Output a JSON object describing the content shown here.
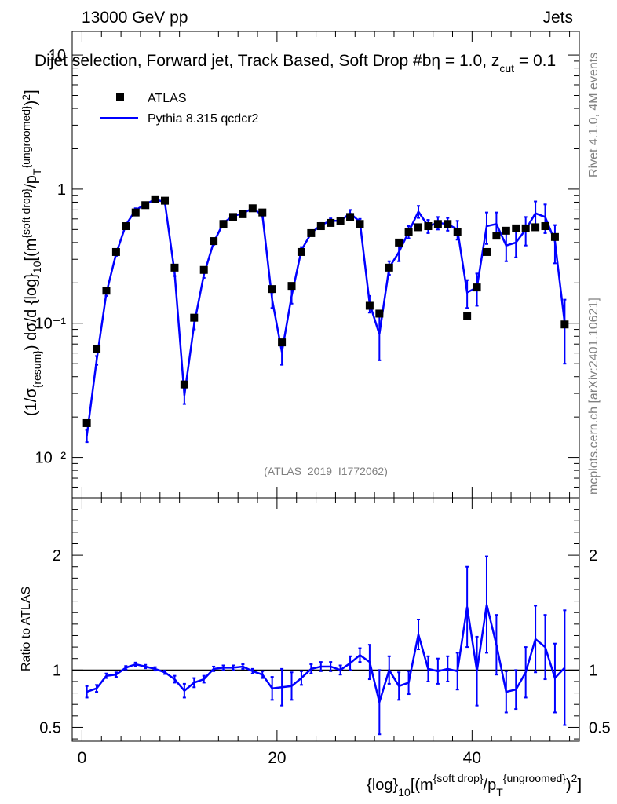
{
  "header": {
    "energy_label": "13000 GeV pp",
    "category_label": "Jets",
    "watermark_id": "(ATLAS_2019_I1772062)",
    "side_rivet": "Rivet 4.1.0,  4M events",
    "side_mcplots": "mcplots.cern.ch [arXiv:2401.10621]"
  },
  "chart_data": [
    {
      "type": "scatter",
      "panel": "main",
      "title": "Dijet selection, Forward jet, Track Based, Soft Drop #bη = 1.0, z",
      "title_sub": "cut",
      "title_tail": " = 0.1",
      "ylabel": "(1/σ{resum}) dσ/d {log}10[(m{soft drop}/pT{ungroomed})2]",
      "yscale": "log",
      "ylim": [
        0.005,
        15
      ],
      "xlim": [
        -1,
        51
      ],
      "y_ticks": [
        "10⁻²",
        "10⁻¹",
        "1",
        "10"
      ],
      "legend": [
        "ATLAS",
        "Pythia 8.315 qcdcr2"
      ],
      "legend_position": "top-left",
      "series": [
        {
          "name": "ATLAS",
          "style": "markers",
          "x": [
            0.5,
            1.5,
            2.5,
            3.5,
            4.5,
            5.5,
            6.5,
            7.5,
            8.5,
            9.5,
            10.5,
            11.5,
            12.5,
            13.5,
            14.5,
            15.5,
            16.5,
            17.5,
            18.5,
            19.5,
            20.5,
            21.5,
            22.5,
            23.5,
            24.5,
            25.5,
            26.5,
            27.5,
            28.5,
            29.5,
            30.5,
            31.5,
            32.5,
            33.5,
            34.5,
            35.5,
            36.5,
            37.5,
            38.5,
            39.5,
            40.5,
            41.5,
            42.5,
            43.5,
            44.5,
            45.5,
            46.5,
            47.5,
            48.5,
            49.5
          ],
          "y": [
            0.018,
            0.064,
            0.175,
            0.34,
            0.53,
            0.67,
            0.76,
            0.84,
            0.82,
            0.26,
            0.035,
            0.11,
            0.25,
            0.41,
            0.55,
            0.62,
            0.65,
            0.72,
            0.67,
            0.18,
            0.072,
            0.19,
            0.34,
            0.47,
            0.53,
            0.56,
            0.58,
            0.62,
            0.55,
            0.135,
            0.118,
            0.26,
            0.4,
            0.48,
            0.52,
            0.53,
            0.55,
            0.55,
            0.48,
            0.113,
            0.185,
            0.34,
            0.45,
            0.49,
            0.51,
            0.51,
            0.52,
            0.53,
            0.44,
            0.098
          ]
        },
        {
          "name": "Pythia 8.315 qcdcr2",
          "style": "line",
          "color": "#0000ff",
          "x": [
            0.5,
            1.5,
            2.5,
            3.5,
            4.5,
            5.5,
            6.5,
            7.5,
            8.5,
            9.5,
            10.5,
            11.5,
            12.5,
            13.5,
            14.5,
            15.5,
            16.5,
            17.5,
            18.5,
            19.5,
            20.5,
            21.5,
            22.5,
            23.5,
            24.5,
            25.5,
            26.5,
            27.5,
            28.5,
            29.5,
            30.5,
            31.5,
            32.5,
            33.5,
            34.5,
            35.5,
            36.5,
            37.5,
            38.5,
            39.5,
            40.5,
            41.5,
            42.5,
            43.5,
            44.5,
            45.5,
            46.5,
            47.5,
            48.5,
            49.5
          ],
          "y": [
            0.0145,
            0.053,
            0.168,
            0.33,
            0.54,
            0.7,
            0.77,
            0.84,
            0.8,
            0.24,
            0.029,
            0.098,
            0.23,
            0.4,
            0.56,
            0.63,
            0.66,
            0.72,
            0.64,
            0.15,
            0.061,
            0.16,
            0.35,
            0.47,
            0.54,
            0.58,
            0.58,
            0.66,
            0.57,
            0.14,
            0.083,
            0.26,
            0.34,
            0.48,
            0.68,
            0.53,
            0.56,
            0.55,
            0.5,
            0.17,
            0.185,
            0.53,
            0.55,
            0.38,
            0.4,
            0.5,
            0.66,
            0.62,
            0.41,
            0.1
          ],
          "err": [
            0.0015,
            0.004,
            0.008,
            0.012,
            0.015,
            0.02,
            0.02,
            0.02,
            0.02,
            0.015,
            0.004,
            0.008,
            0.012,
            0.015,
            0.02,
            0.02,
            0.02,
            0.02,
            0.02,
            0.02,
            0.012,
            0.02,
            0.02,
            0.02,
            0.02,
            0.025,
            0.025,
            0.04,
            0.03,
            0.02,
            0.03,
            0.03,
            0.05,
            0.05,
            0.07,
            0.06,
            0.06,
            0.06,
            0.08,
            0.04,
            0.05,
            0.14,
            0.12,
            0.09,
            0.09,
            0.12,
            0.15,
            0.15,
            0.13,
            0.05
          ]
        }
      ]
    },
    {
      "type": "line",
      "panel": "ratio",
      "xlabel": "{log}10[(m{soft drop}/pT{ungroomed})2]",
      "ylabel": "Ratio to ATLAS",
      "ylim": [
        0.38,
        2.5
      ],
      "xlim": [
        -1,
        51
      ],
      "x_ticks": [
        0,
        20,
        40
      ],
      "y_ticks": [
        0.5,
        1,
        2
      ],
      "reference_line": 1,
      "series": [
        {
          "name": "Pythia 8.315 qcdcr2",
          "color": "#0000ff",
          "x": [
            0.5,
            1.5,
            2.5,
            3.5,
            4.5,
            5.5,
            6.5,
            7.5,
            8.5,
            9.5,
            10.5,
            11.5,
            12.5,
            13.5,
            14.5,
            15.5,
            16.5,
            17.5,
            18.5,
            19.5,
            20.5,
            21.5,
            22.5,
            23.5,
            24.5,
            25.5,
            26.5,
            27.5,
            28.5,
            29.5,
            30.5,
            31.5,
            32.5,
            33.5,
            34.5,
            35.5,
            36.5,
            37.5,
            38.5,
            39.5,
            40.5,
            41.5,
            42.5,
            43.5,
            44.5,
            45.5,
            46.5,
            47.5,
            48.5,
            49.5
          ],
          "y": [
            0.81,
            0.84,
            0.95,
            0.96,
            1.02,
            1.05,
            1.03,
            1.01,
            0.98,
            0.92,
            0.82,
            0.89,
            0.92,
            1.01,
            1.02,
            1.02,
            1.03,
            0.99,
            0.96,
            0.84,
            0.85,
            0.86,
            0.93,
            1.01,
            1.03,
            1.03,
            1.0,
            1.06,
            1.13,
            1.07,
            0.72,
            1.0,
            0.86,
            0.89,
            1.31,
            1.01,
            0.99,
            1.01,
            0.99,
            1.55,
            0.99,
            1.57,
            1.22,
            0.81,
            0.83,
            0.98,
            1.27,
            1.2,
            0.93,
            1.02
          ],
          "err": [
            0.05,
            0.03,
            0.02,
            0.02,
            0.015,
            0.015,
            0.015,
            0.015,
            0.015,
            0.03,
            0.06,
            0.04,
            0.03,
            0.02,
            0.02,
            0.02,
            0.02,
            0.02,
            0.03,
            0.1,
            0.16,
            0.12,
            0.06,
            0.04,
            0.04,
            0.04,
            0.04,
            0.06,
            0.06,
            0.15,
            0.28,
            0.12,
            0.12,
            0.1,
            0.13,
            0.11,
            0.11,
            0.11,
            0.16,
            0.35,
            0.3,
            0.42,
            0.26,
            0.18,
            0.17,
            0.22,
            0.29,
            0.28,
            0.3,
            0.5
          ]
        }
      ]
    }
  ]
}
